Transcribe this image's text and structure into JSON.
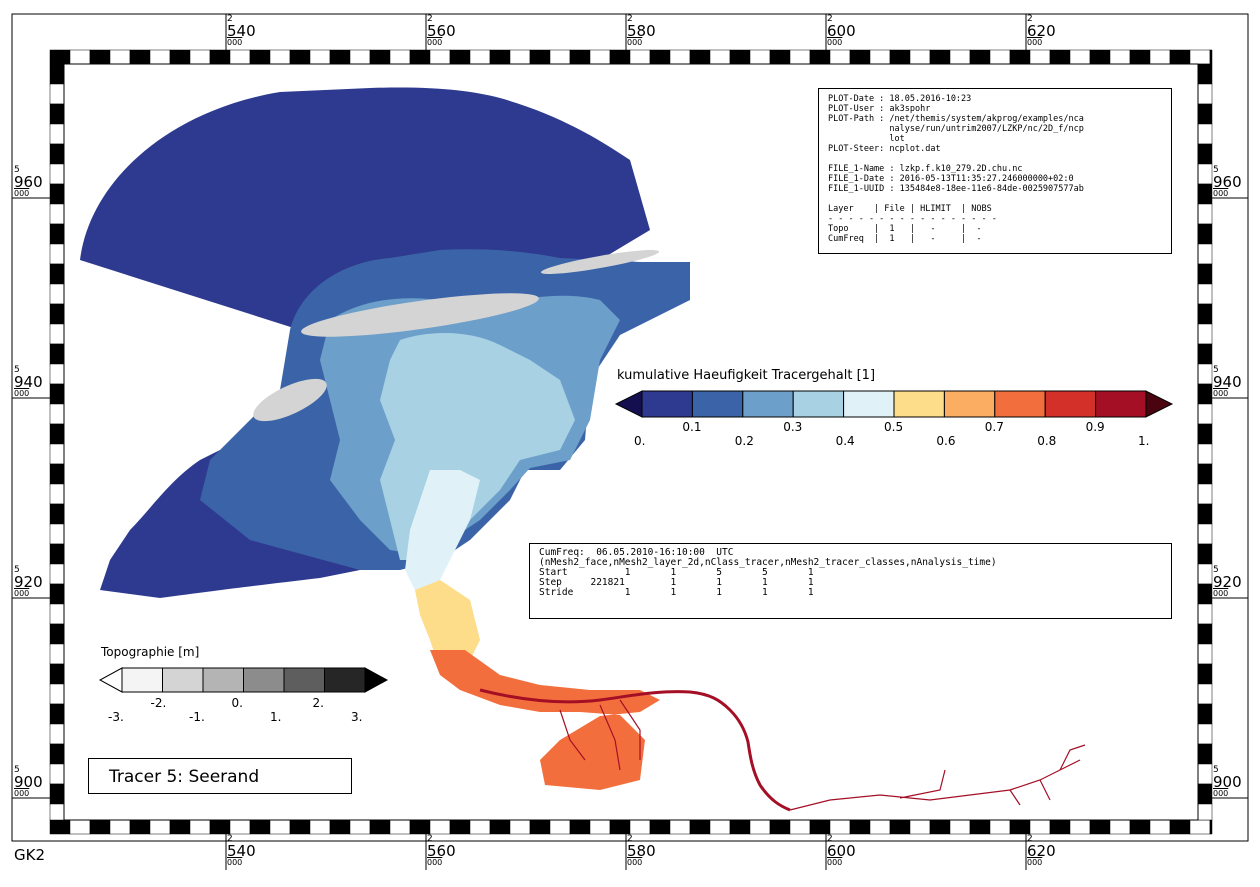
{
  "projection_label": "GK2",
  "x_axis": {
    "prefix": "2",
    "suffix": "000",
    "labels": [
      "540",
      "560",
      "580",
      "600",
      "620"
    ]
  },
  "y_axis": {
    "prefix": "5",
    "suffix": "000",
    "labels": [
      "960",
      "940",
      "920",
      "900"
    ]
  },
  "title": "Tracer 5: Seerand",
  "plot_info": [
    "PLOT-Date : 18.05.2016-10:23",
    "PLOT-User : ak3spohr",
    "PLOT-Path : /net/themis/system/akprog/examples/nca",
    "            nalyse/run/untrim2007/LZKP/nc/2D_f/ncp",
    "            lot",
    "PLOT-Steer: ncplot.dat",
    "",
    "FILE_1-Name : lzkp.f.k10_279.2D.chu.nc",
    "FILE_1-Date : 2016-05-13T11:35:27.246000000+02:0",
    "FILE_1-UUID : 135484e8-18ee-11e6-84de-0025907577ab",
    "",
    "Layer    | File | HLIMIT  | NOBS",
    "- - - - - - - - - - - - - - - - -",
    "Topo     |  1   |   -     |  -",
    "CumFreq  |  1   |   -     |  -"
  ],
  "cumfreq_info": [
    "CumFreq:  06.05.2010-16:10:00  UTC",
    "(nMesh2_face,nMesh2_layer_2d,nClass_tracer,nMesh2_tracer_classes,nAnalysis_time)",
    "Start          1       1       5       5       1",
    "Step     221821        1       1       1       1",
    "Stride         1       1       1       1       1"
  ],
  "tracer_legend": {
    "title": "kumulative Haeufigkeit Tracergehalt [1]",
    "colors": [
      "#2e3a8f",
      "#3b64a8",
      "#6c9fc9",
      "#a8d1e3",
      "#e0f2f7",
      "#fddc8a",
      "#fbad61",
      "#f26f3d",
      "#d4302a",
      "#a50f26"
    ],
    "under_color": "#14104f",
    "over_color": "#4a0410",
    "labels_lower": [
      "0.",
      "0.2",
      "0.4",
      "0.6",
      "0.8",
      "1."
    ],
    "labels_upper": [
      "0.1",
      "0.3",
      "0.5",
      "0.7",
      "0.9"
    ]
  },
  "topo_legend": {
    "title": "Topographie [m]",
    "colors": [
      "#f4f4f4",
      "#d4d4d4",
      "#b4b4b4",
      "#8c8c8c",
      "#5e5e5e",
      "#262626"
    ],
    "under_color": "#ffffff",
    "over_color": "#000000",
    "labels_lower": [
      "-3.",
      "-1.",
      "1.",
      "3."
    ],
    "labels_upper": [
      "-2.",
      "0.",
      "2."
    ]
  },
  "map_colors": {
    "open_sea": "#2e3a8f",
    "coastal": "#3b64a8",
    "shallow": "#6c9fc9",
    "flats": "#a8d1e3",
    "inner": "#e0f2f7",
    "estuary_mid": "#fddc8a",
    "estuary_upper": "#f26f3d",
    "channel": "#a50f26",
    "land_topo": "#d4d4d4"
  }
}
